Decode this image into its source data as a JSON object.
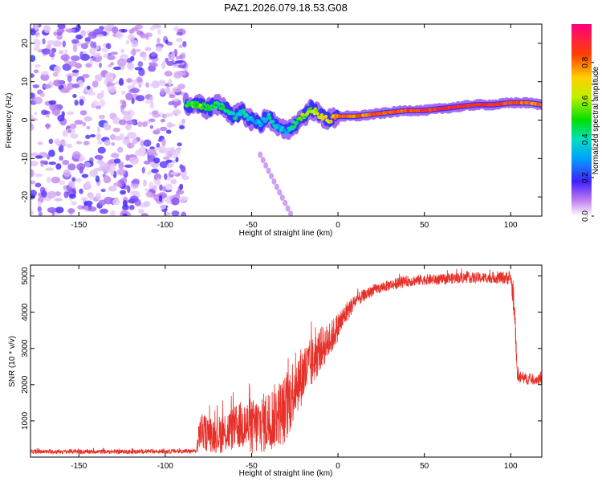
{
  "title": "PAZ1.2026.079.18.53.G08",
  "colors": {
    "snr_line": "#e8302a",
    "noise_purple": "#8a2be2",
    "frame": "#000000"
  },
  "chart_data": [
    {
      "type": "heatmap",
      "name": "spectrogram",
      "xlabel": "Height of straight line (km)",
      "ylabel": "Frequency (Hz)",
      "xlim": [
        -178,
        118
      ],
      "ylim": [
        -25,
        25
      ],
      "xticks": [
        -150,
        -100,
        -50,
        0,
        50,
        100
      ],
      "xtick_labels": [
        "-150",
        "-100",
        "-50",
        "0",
        "50",
        "100"
      ],
      "yticks": [
        -20,
        -10,
        0,
        10,
        20
      ],
      "ytick_labels": [
        "-20",
        "-10",
        "0",
        "10",
        "20"
      ],
      "noise_region": {
        "x_from": -178,
        "x_to": -88,
        "description": "scattered low-amplitude purple blobs"
      },
      "signal_track": {
        "x": [
          -88,
          -80,
          -75,
          -70,
          -65,
          -60,
          -55,
          -50,
          -45,
          -40,
          -35,
          -30,
          -25,
          -20,
          -15,
          -10,
          -5,
          0,
          10,
          20,
          30,
          40,
          50,
          60,
          70,
          80,
          90,
          100,
          110,
          118
        ],
        "freq_hz": [
          4,
          4,
          3,
          4,
          3,
          1,
          2,
          0,
          -1,
          1,
          -2,
          -3,
          -1,
          1,
          3,
          1,
          0,
          1,
          1,
          1.5,
          2,
          2.5,
          2.5,
          3,
          3.5,
          4,
          4,
          4.5,
          4.5,
          4
        ],
        "amplitude": [
          0.5,
          0.55,
          0.5,
          0.45,
          0.45,
          0.4,
          0.4,
          0.35,
          0.35,
          0.4,
          0.35,
          0.35,
          0.5,
          0.55,
          0.6,
          0.65,
          0.7,
          0.8,
          0.8,
          0.8,
          0.85,
          0.85,
          0.85,
          0.9,
          0.9,
          0.9,
          0.9,
          0.85,
          0.8,
          0.8
        ]
      },
      "colorbar": {
        "label": "Normalized spectral amplitude",
        "range": [
          0.0,
          1.0
        ],
        "ticks": [
          0.0,
          0.2,
          0.4,
          0.6,
          0.8
        ],
        "tick_labels": [
          "0.0",
          "0.2",
          "0.4",
          "0.6",
          "0.8"
        ]
      }
    },
    {
      "type": "line",
      "name": "snr",
      "xlabel": "Height of straight line (km)",
      "ylabel": "SNR (10 * v/v)",
      "xlim": [
        -178,
        118
      ],
      "ylim": [
        0,
        5300
      ],
      "xticks": [
        -150,
        -100,
        -50,
        0,
        50,
        100
      ],
      "xtick_labels": [
        "-150",
        "-100",
        "-50",
        "0",
        "50",
        "100"
      ],
      "yticks": [
        1000,
        2000,
        3000,
        4000,
        5000
      ],
      "ytick_labels": [
        "1000",
        "2000",
        "3000",
        "4000",
        "5000"
      ],
      "series": [
        {
          "name": "SNR",
          "x": [
            -178,
            -160,
            -140,
            -120,
            -100,
            -82,
            -80,
            -75,
            -70,
            -65,
            -60,
            -55,
            -50,
            -45,
            -40,
            -35,
            -30,
            -25,
            -20,
            -15,
            -10,
            -5,
            0,
            5,
            10,
            20,
            30,
            40,
            50,
            60,
            70,
            80,
            90,
            100,
            102,
            104,
            110,
            118
          ],
          "mean": [
            150,
            150,
            150,
            150,
            160,
            160,
            700,
            650,
            600,
            700,
            800,
            900,
            800,
            900,
            1000,
            1200,
            1300,
            2000,
            2300,
            2600,
            3000,
            3200,
            3600,
            4000,
            4300,
            4600,
            4750,
            4850,
            4900,
            4900,
            4950,
            4950,
            4950,
            4950,
            4200,
            2200,
            2150,
            2150
          ],
          "spread": [
            60,
            60,
            60,
            60,
            60,
            60,
            500,
            500,
            500,
            600,
            600,
            700,
            800,
            800,
            900,
            900,
            1000,
            900,
            800,
            700,
            600,
            500,
            400,
            300,
            200,
            150,
            150,
            150,
            150,
            150,
            150,
            150,
            150,
            200,
            400,
            200,
            150,
            150
          ]
        }
      ]
    }
  ]
}
